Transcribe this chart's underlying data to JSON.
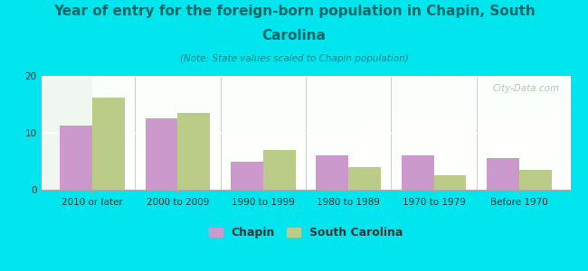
{
  "title_line1": "Year of entry for the foreign-born population in Chapin, South",
  "title_line2": "Carolina",
  "subtitle": "(Note: State values scaled to Chapin population)",
  "categories": [
    "2010 or later",
    "2000 to 2009",
    "1990 to 1999",
    "1980 to 1989",
    "1970 to 1979",
    "Before 1970"
  ],
  "chapin_values": [
    11.2,
    12.5,
    5.0,
    6.0,
    6.0,
    5.5
  ],
  "sc_values": [
    16.2,
    13.5,
    7.0,
    4.0,
    2.5,
    3.5
  ],
  "chapin_color": "#cc99cc",
  "sc_color": "#bbcc88",
  "background_color": "#00e5ee",
  "plot_bg": "#e8f4e8",
  "title_color": "#006666",
  "subtitle_color": "#008888",
  "watermark_color": "#aabbaa",
  "ylim": [
    0,
    20
  ],
  "yticks": [
    0,
    10,
    20
  ],
  "watermark": "City-Data.com",
  "legend_chapin": "Chapin",
  "legend_sc": "South Carolina",
  "bar_width": 0.38,
  "title_fontsize": 11,
  "subtitle_fontsize": 7.5,
  "axis_fontsize": 7.5,
  "legend_fontsize": 9
}
